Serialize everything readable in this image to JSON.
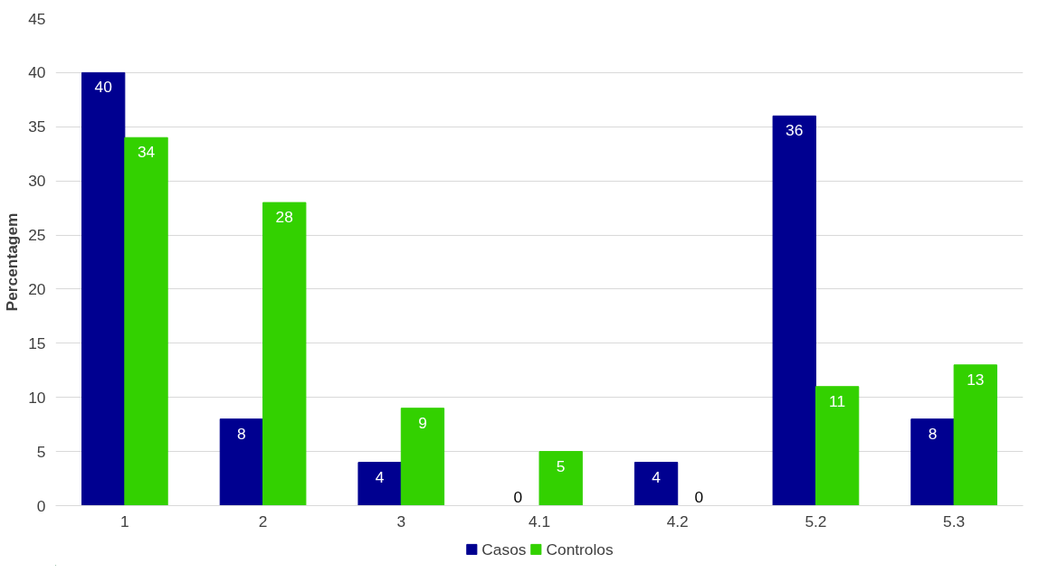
{
  "chart_data": {
    "type": "bar",
    "ylabel": "Percentagem",
    "categories": [
      "1",
      "2",
      "3",
      "4.1",
      "4.2",
      "5.2",
      "5.3"
    ],
    "series": [
      {
        "name": "Casos",
        "color": "#000090",
        "values": [
          40,
          8,
          4,
          0,
          4,
          36,
          8
        ]
      },
      {
        "name": "Controlos",
        "color": "#33d100",
        "values": [
          34,
          28,
          9,
          5,
          0,
          11,
          13
        ]
      }
    ],
    "ylim": [
      0,
      45
    ],
    "yticks": [
      0,
      5,
      10,
      15,
      20,
      25,
      30,
      35,
      40,
      45
    ],
    "grid": "y",
    "legend": "bottom",
    "data_labels": true
  }
}
